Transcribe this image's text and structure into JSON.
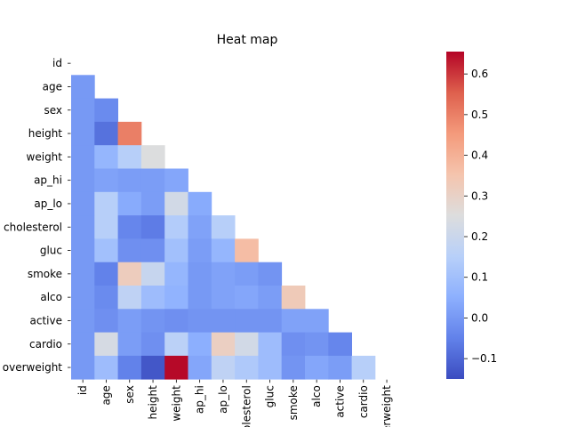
{
  "chart_data": {
    "type": "heatmap",
    "title": "Heat map",
    "labels": [
      "id",
      "age",
      "sex",
      "height",
      "weight",
      "ap_hi",
      "ap_lo",
      "cholesterol",
      "gluc",
      "smoke",
      "alco",
      "active",
      "cardio",
      "overweight"
    ],
    "mask": "upper-triangle-including-diagonal",
    "colormap": "coolwarm",
    "vmin": -0.15,
    "vmax": 0.655,
    "colorbar_ticks": [
      -0.1,
      0.0,
      0.1,
      0.2,
      0.3,
      0.4,
      0.5,
      0.6
    ],
    "colorbar_tick_labels": [
      "−0.1",
      "0.0",
      "0.1",
      "0.2",
      "0.3",
      "0.4",
      "0.5",
      "0.6"
    ],
    "values": [
      [
        null
      ],
      [
        0.0
      ],
      [
        0.0,
        -0.03
      ],
      [
        0.0,
        -0.08,
        0.5
      ],
      [
        0.0,
        0.07,
        0.15,
        0.25
      ],
      [
        0.0,
        0.02,
        0.01,
        0.01,
        0.03
      ],
      [
        0.0,
        0.15,
        0.04,
        0.01,
        0.22,
        0.04
      ],
      [
        0.0,
        0.15,
        -0.04,
        -0.06,
        0.14,
        0.02,
        0.15
      ],
      [
        0.0,
        0.1,
        -0.02,
        -0.02,
        0.1,
        0.01,
        0.07,
        0.37
      ],
      [
        0.0,
        -0.05,
        0.32,
        0.19,
        0.07,
        0.0,
        0.02,
        0.01,
        -0.01
      ],
      [
        0.0,
        -0.03,
        0.17,
        0.09,
        0.06,
        0.0,
        0.02,
        0.03,
        0.01,
        0.33
      ],
      [
        0.0,
        -0.02,
        0.01,
        -0.01,
        -0.02,
        -0.01,
        -0.01,
        -0.01,
        -0.01,
        0.02,
        0.02
      ],
      [
        0.0,
        0.23,
        0.01,
        -0.02,
        0.16,
        0.05,
        0.31,
        0.22,
        0.09,
        -0.02,
        -0.01,
        -0.04
      ],
      [
        0.0,
        0.09,
        -0.05,
        -0.13,
        0.65,
        0.03,
        0.17,
        0.13,
        0.09,
        -0.01,
        0.03,
        0.01,
        0.15
      ]
    ]
  }
}
